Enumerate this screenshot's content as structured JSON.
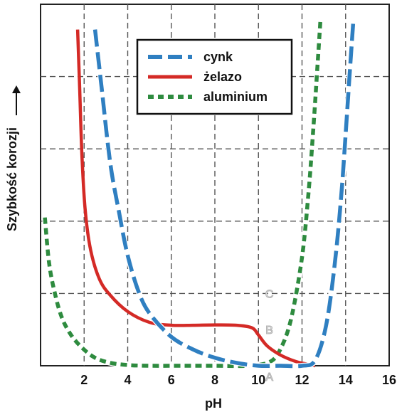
{
  "chart_data": {
    "type": "line",
    "xlabel": "pH",
    "ylabel": "Szybkość korozji",
    "xlim": [
      0,
      16
    ],
    "ylim": [
      0,
      10
    ],
    "x_ticks": [
      "2",
      "4",
      "6",
      "8",
      "10",
      "12",
      "14",
      "16"
    ],
    "grid": true,
    "legend_position": "top-center",
    "series": [
      {
        "name": "cynk",
        "style": "dashed",
        "color": "#2f7fc1",
        "x": [
          2.5,
          2.8,
          3.2,
          3.6,
          4.0,
          4.5,
          5.0,
          6.0,
          7.0,
          8.0,
          9.0,
          10.0,
          11.0,
          12.0,
          12.6,
          13.1,
          13.5,
          13.8,
          14.0,
          14.2,
          14.35
        ],
        "y": [
          9.3,
          7.7,
          5.6,
          4.25,
          3.05,
          2.05,
          1.45,
          0.8,
          0.45,
          0.22,
          0.08,
          0.0,
          0.0,
          0.0,
          0.15,
          1.1,
          2.8,
          4.7,
          6.4,
          8.2,
          9.5
        ]
      },
      {
        "name": "żelazo",
        "style": "solid",
        "color": "#d42a26",
        "x": [
          1.7,
          1.8,
          1.9,
          2.05,
          2.3,
          2.7,
          3.2,
          4.0,
          5.0,
          6.0,
          7.0,
          8.0,
          9.0,
          9.7,
          10.0,
          10.4,
          11.0,
          11.7,
          12.2,
          12.6
        ],
        "y": [
          9.3,
          7.6,
          5.8,
          4.3,
          3.2,
          2.4,
          1.95,
          1.5,
          1.2,
          1.12,
          1.12,
          1.13,
          1.12,
          1.05,
          0.85,
          0.55,
          0.3,
          0.12,
          0.05,
          0.0
        ]
      },
      {
        "name": "aluminium",
        "style": "dotted",
        "color": "#2e8b3f",
        "x": [
          0.2,
          0.4,
          0.7,
          1.0,
          1.4,
          1.9,
          2.5,
          3.2,
          4.0,
          5.0,
          6.5,
          8.0,
          9.5,
          10.5,
          11.0,
          11.5,
          12.0,
          12.3,
          12.5,
          12.7,
          12.85
        ],
        "y": [
          4.1,
          2.8,
          1.9,
          1.3,
          0.85,
          0.5,
          0.22,
          0.08,
          0.02,
          0.0,
          0.0,
          0.0,
          0.0,
          0.1,
          0.45,
          1.3,
          3.0,
          4.8,
          6.4,
          8.2,
          9.6
        ]
      }
    ],
    "region_labels": [
      {
        "text": "A",
        "x": 10.5,
        "y": -0.3
      },
      {
        "text": "B",
        "x": 10.5,
        "y": 1.0
      },
      {
        "text": "C",
        "x": 10.5,
        "y": 2.0
      }
    ]
  }
}
